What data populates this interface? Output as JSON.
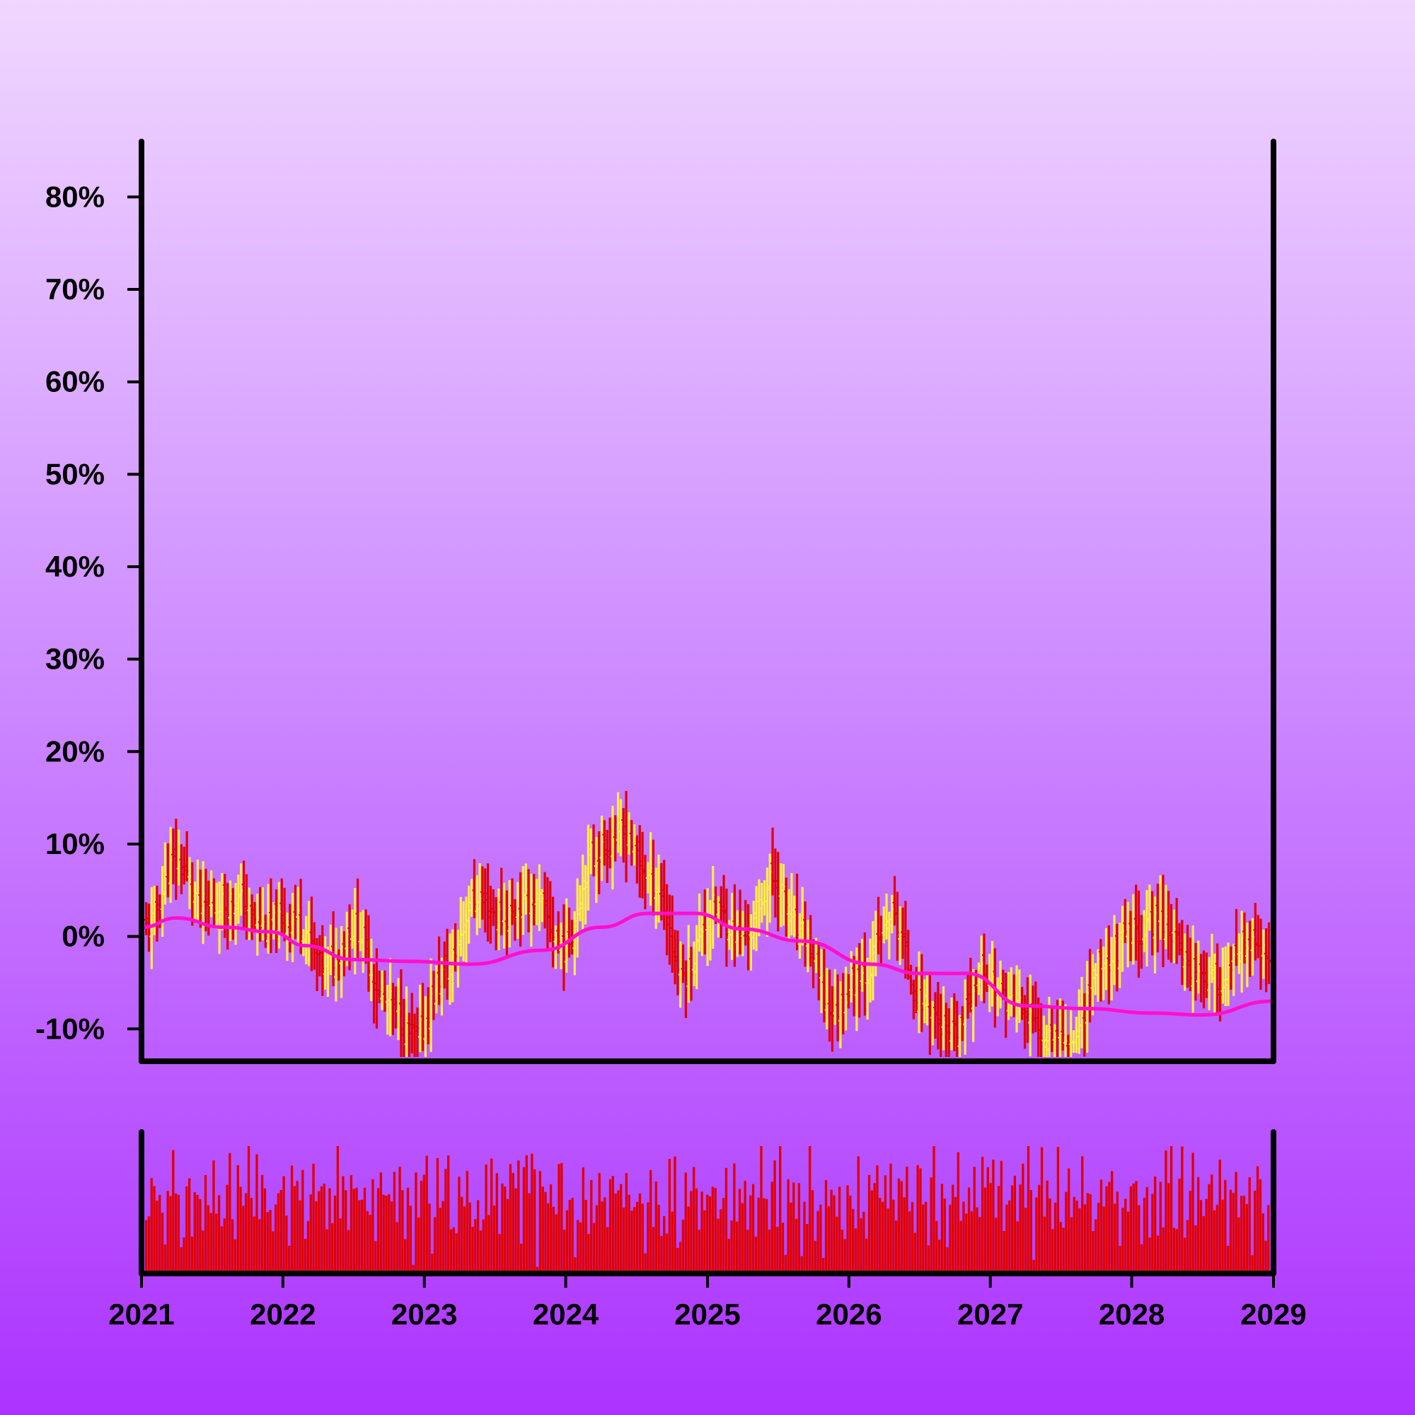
{
  "chart_data": {
    "type": "ohlc",
    "title": "",
    "xlabel": "",
    "ylabel": "",
    "x_range": [
      "2021-01-01",
      "2029-01-01"
    ],
    "y_range": [
      -13.5,
      86
    ],
    "y_ticks": [
      -10,
      0,
      10,
      20,
      30,
      40,
      50,
      60,
      70,
      80
    ],
    "y_tick_labels": [
      "-10%",
      "0%",
      "10%",
      "20%",
      "30%",
      "40%",
      "50%",
      "60%",
      "70%",
      "80%"
    ],
    "x_ticks": [
      "2021",
      "2022",
      "2023",
      "2024",
      "2025",
      "2026",
      "2027",
      "2028",
      "2029"
    ],
    "grid": false,
    "legend": "none",
    "bar_interval": "weekly",
    "colors": {
      "up": "#ffee44",
      "down": "#e00000",
      "moving_average": "#ff10cc",
      "volume": "#e00000",
      "axes": "#000000"
    },
    "series": [
      {
        "kind": "ohlc",
        "start": "2021-01-04",
        "interval_days": 7,
        "anchor_closes_percent": [
          1,
          8,
          3,
          4,
          1,
          2,
          -3,
          1,
          -7,
          -11,
          -4,
          4,
          2,
          4,
          -1,
          9,
          11,
          6,
          -4,
          3,
          0,
          6,
          0,
          -8,
          -4,
          2,
          -7,
          -11,
          -4,
          -7,
          -10,
          -11,
          -3,
          0,
          2,
          -3,
          -5,
          -1,
          -4
        ],
        "anchor_step_weeks": 11
      },
      {
        "kind": "line",
        "name": "",
        "x": [
          "2021-01-04",
          "2021-04-01",
          "2021-08-01",
          "2021-12-01",
          "2022-03-01",
          "2022-07-01",
          "2022-12-01",
          "2023-05-01",
          "2023-11-01",
          "2024-04-01",
          "2024-08-01",
          "2024-12-01",
          "2025-04-01",
          "2025-09-01",
          "2026-03-01",
          "2026-07-01",
          "2026-11-01",
          "2027-04-01",
          "2027-09-01",
          "2028-03-01",
          "2028-07-01",
          "2028-12-31"
        ],
        "values": [
          1,
          2,
          1,
          0.5,
          -1,
          -2.5,
          -2.7,
          -3,
          -1.5,
          1,
          2.5,
          2.5,
          0.8,
          -0.5,
          -3,
          -4,
          -4,
          -7.5,
          -7.8,
          -8.3,
          -8.5,
          -7
        ]
      },
      {
        "kind": "volume",
        "values_relative": [
          0.7,
          0.2,
          0.6,
          0.9,
          0.4,
          0.95,
          0.6,
          0.05,
          0.75,
          0.45,
          0.85,
          0.55,
          0.9,
          0.2,
          0.25,
          0.6,
          0.95,
          0.45,
          0.3,
          0.75,
          0.9,
          0.2,
          0.5,
          0.35,
          0.6,
          0.95,
          0.4,
          0.8,
          0.55,
          0.3,
          0.7,
          0.9,
          0.45,
          0.25,
          0.85,
          0.6,
          0.75,
          0.4,
          0.95,
          0.3,
          0.55,
          0.8,
          0.2,
          0.65,
          0.9,
          0.5
        ]
      }
    ]
  }
}
